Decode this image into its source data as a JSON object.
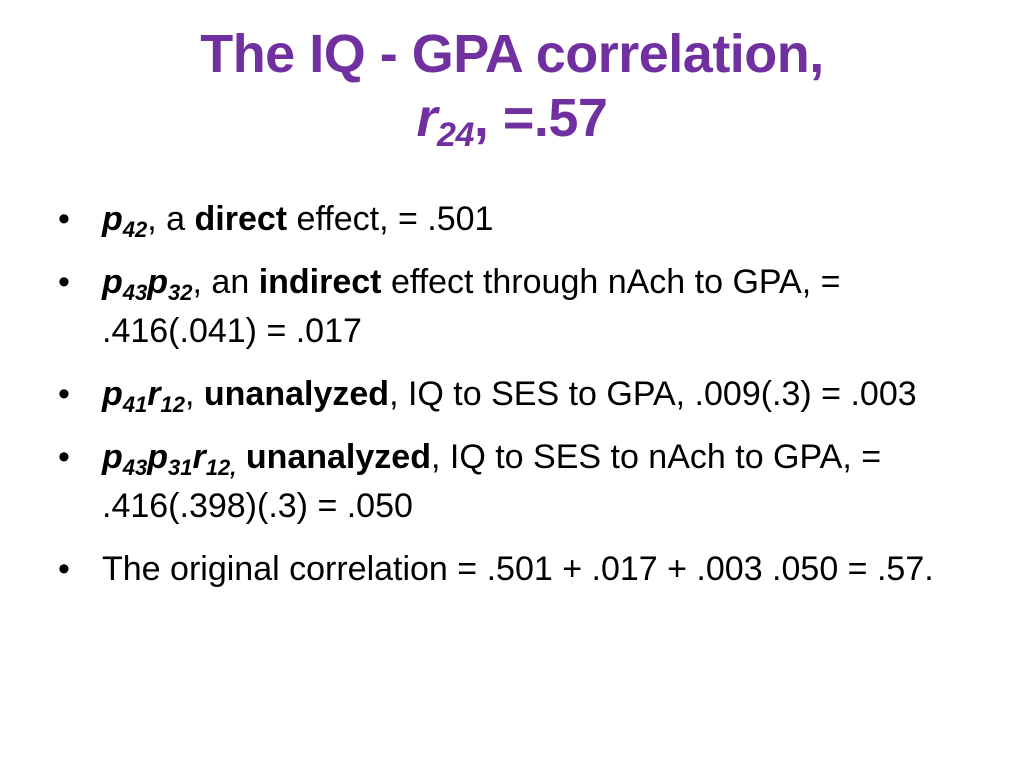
{
  "title": {
    "line1": "The IQ - GPA correlation,",
    "r_symbol": "r",
    "r_subscript": "24",
    "r_value": ", =.57",
    "color": "#7030a0"
  },
  "bullet_glyph": "•",
  "bullets": [
    {
      "sym1": "p",
      "sub1": "42",
      "lead": ", a ",
      "term": "direct",
      "text": " effect, = .501"
    },
    {
      "sym1": "p",
      "sub1": "43",
      "sym2": "p",
      "sub2": "32",
      "lead": ", an ",
      "term": "indirect",
      "text": " effect through nAch to GPA, = .416(.041) = .017"
    },
    {
      "sym1": "p",
      "sub1": "41",
      "sym2": "r",
      "sub2": "12",
      "lead": ", ",
      "term": "unanalyzed",
      "text": ", IQ to SES to GPA, .009(.3) = .003"
    },
    {
      "sym1": "p",
      "sub1": "43",
      "sym2": "p",
      "sub2": "31",
      "sym3": "r",
      "sub3": "12,",
      "lead": " ",
      "term": "unanalyzed",
      "text": ", IQ to SES to nAch to GPA, = .416(.398)(.3) = .050"
    },
    {
      "text": "The original correlation = .501 + .017 + .003 .050 = .57."
    }
  ]
}
